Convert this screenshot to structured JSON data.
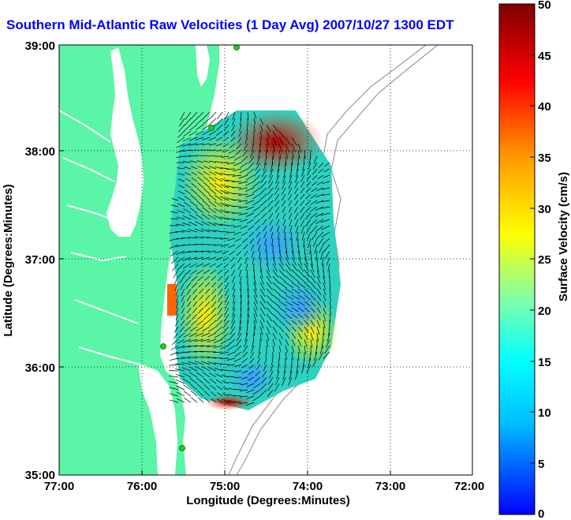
{
  "title": "Southern Mid-Atlantic Raw Velocities (1 Day Avg) 2007/10/27 1300 EDT",
  "x_axis": {
    "label": "Longitude (Degrees:Minutes)",
    "ticks": [
      "77:00",
      "76:00",
      "75:00",
      "74:00",
      "73:00",
      "72:00"
    ]
  },
  "y_axis": {
    "label": "Latitude (Degrees:Minutes)",
    "ticks": [
      "39:00",
      "38:00",
      "37:00",
      "36:00",
      "35:00"
    ]
  },
  "colorbar": {
    "label": "Surface Velocity (cm/s)",
    "ticks": [
      "50",
      "45",
      "40",
      "35",
      "30",
      "25",
      "20",
      "15",
      "10",
      "5",
      "0"
    ],
    "colors": [
      "#0000ff",
      "#00bfff",
      "#00ffff",
      "#7fff7f",
      "#ffff00",
      "#ff8000",
      "#ff0000",
      "#7f0000"
    ]
  },
  "colors": {
    "land": "#5af5a7",
    "title": "#0000ff",
    "station": "#22cc22"
  }
}
